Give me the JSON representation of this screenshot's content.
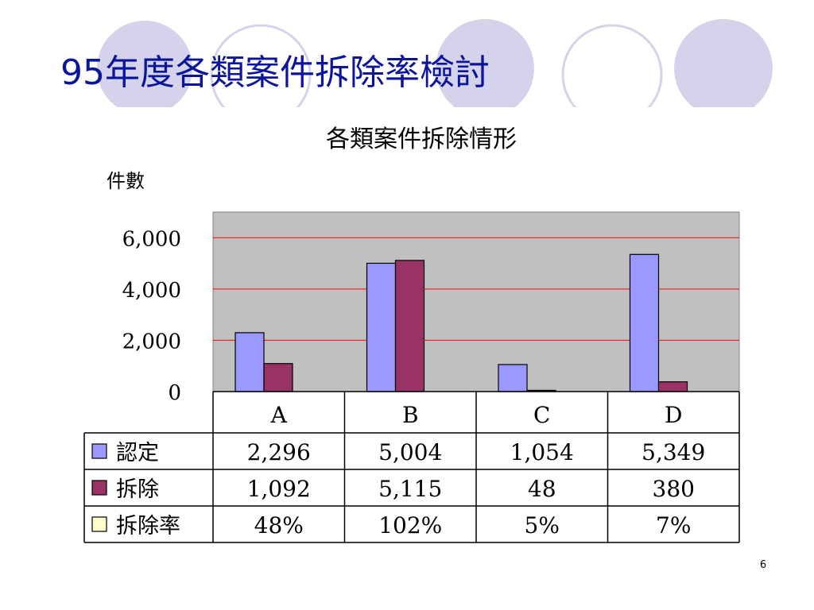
{
  "slide": {
    "title": "95年度各類案件拆除率檢討",
    "page_number": "6",
    "colors": {
      "title": "#0a149c",
      "circle_filled": "#d4d3eb",
      "circle_outline": "#d4d3eb"
    }
  },
  "chart_data": {
    "type": "bar",
    "title": "各類案件拆除情形",
    "ylabel": "件數",
    "xlabel": "",
    "categories": [
      "A",
      "B",
      "C",
      "D"
    ],
    "ylim": [
      0,
      7000
    ],
    "ytick_values": [
      0,
      2000,
      4000,
      6000
    ],
    "yticks": [
      "0",
      "2,000",
      "4,000",
      "6,000"
    ],
    "grid": true,
    "plot_background": "#c0c0c0",
    "grid_color": "#ff0000",
    "legend_placement": "left of data table",
    "series": [
      {
        "name": "認定",
        "values": [
          2296,
          5004,
          1054,
          5349
        ],
        "color": "#9999ff",
        "labels": [
          "2,296",
          "5,004",
          "1,054",
          "5,349"
        ]
      },
      {
        "name": "拆除",
        "values": [
          1092,
          5115,
          48,
          380
        ],
        "color": "#993366",
        "labels": [
          "1,092",
          "5,115",
          "48",
          "380"
        ]
      }
    ],
    "table_rows": [
      {
        "name": "認定",
        "color": "#9999ff",
        "cells": [
          "2,296",
          "5,004",
          "1,054",
          "5,349"
        ]
      },
      {
        "name": "拆除",
        "color": "#993366",
        "cells": [
          "1,092",
          "5,115",
          "48",
          "380"
        ]
      },
      {
        "name": "拆除率",
        "color": "#ffffcc",
        "cells": [
          "48%",
          "102%",
          "5%",
          "7%"
        ]
      }
    ]
  }
}
